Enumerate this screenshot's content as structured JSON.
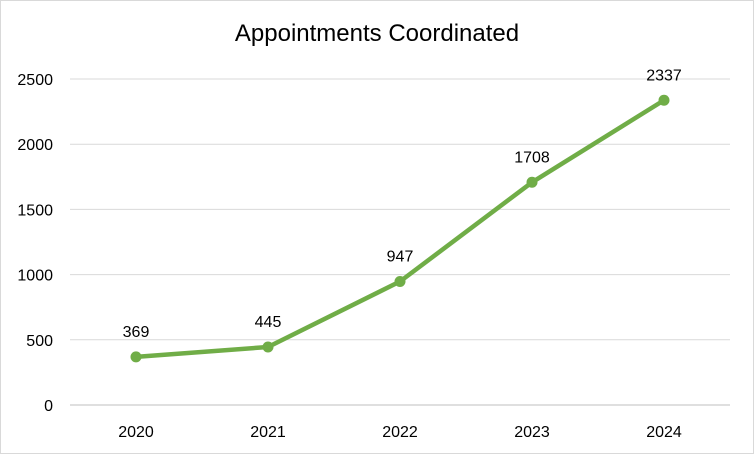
{
  "chart_data": {
    "type": "line",
    "title": "Appointments Coordinated",
    "xlabel": "",
    "ylabel": "",
    "categories": [
      "2020",
      "2021",
      "2022",
      "2023",
      "2024"
    ],
    "series": [
      {
        "values": [
          369,
          445,
          947,
          1708,
          2337
        ],
        "color": "#70ad47"
      }
    ],
    "data_labels": [
      "369",
      "445",
      "947",
      "1708",
      "2337"
    ],
    "ylim": [
      0,
      2500
    ],
    "yticks": [
      0,
      500,
      1000,
      1500,
      2000,
      2500
    ],
    "grid": true,
    "legend": "none",
    "colors": {
      "line": "#70ad47",
      "grid": "#d9d9d9",
      "axis": "#bfbfbf"
    }
  }
}
